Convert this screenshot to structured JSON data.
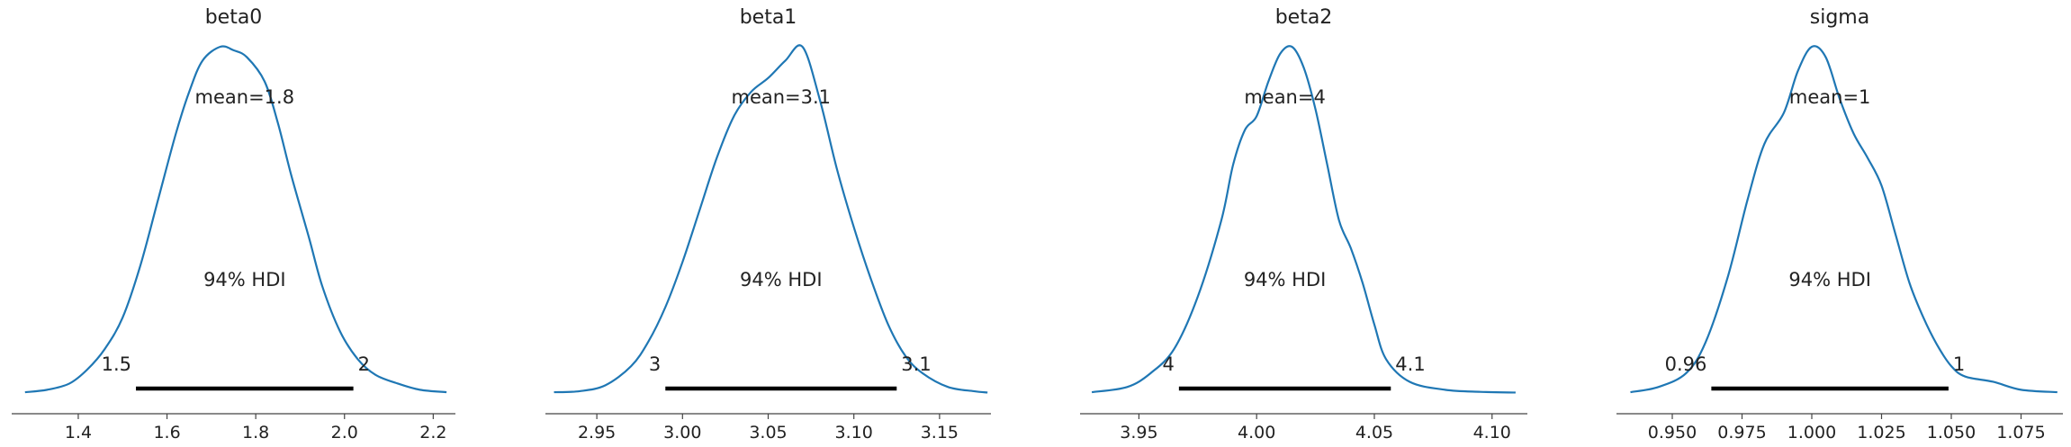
{
  "colors": {
    "curve": "#1f77b4",
    "hdi_bar": "#000000",
    "axis": "#444444",
    "text": "#222222"
  },
  "chart_data": [
    {
      "type": "line",
      "title": "beta0",
      "mean_label": "mean=1.8",
      "hdi_label": "94% HDI",
      "hdi": [
        1.53,
        2.02
      ],
      "hdi_low_label": "1.5",
      "hdi_high_label": "2",
      "xlim": [
        1.25,
        2.25
      ],
      "xticks": [
        1.4,
        1.6,
        1.8,
        2.0,
        2.2
      ],
      "xtick_labels": [
        "1.4",
        "1.6",
        "1.8",
        "2.0",
        "2.2"
      ],
      "density": {
        "x": [
          1.28,
          1.33,
          1.38,
          1.42,
          1.46,
          1.5,
          1.54,
          1.58,
          1.62,
          1.65,
          1.68,
          1.72,
          1.75,
          1.78,
          1.82,
          1.85,
          1.88,
          1.92,
          1.95,
          1.99,
          2.03,
          2.07,
          2.12,
          2.17,
          2.23
        ],
        "y": [
          0.005,
          0.012,
          0.03,
          0.07,
          0.13,
          0.22,
          0.37,
          0.56,
          0.75,
          0.87,
          0.96,
          1.0,
          0.99,
          0.97,
          0.9,
          0.78,
          0.63,
          0.45,
          0.31,
          0.18,
          0.1,
          0.055,
          0.03,
          0.012,
          0.005
        ]
      }
    },
    {
      "type": "line",
      "title": "beta1",
      "mean_label": "mean=3.1",
      "hdi_label": "94% HDI",
      "hdi": [
        2.99,
        3.125
      ],
      "hdi_low_label": "3",
      "hdi_high_label": "3.1",
      "xlim": [
        2.92,
        3.18
      ],
      "xticks": [
        2.95,
        3.0,
        3.05,
        3.1,
        3.15
      ],
      "xtick_labels": [
        "2.95",
        "3.00",
        "3.05",
        "3.10",
        "3.15"
      ],
      "density": {
        "x": [
          2.925,
          2.94,
          2.955,
          2.97,
          2.98,
          2.99,
          3.0,
          3.01,
          3.02,
          3.03,
          3.04,
          3.05,
          3.06,
          3.07,
          3.08,
          3.09,
          3.1,
          3.11,
          3.12,
          3.13,
          3.14,
          3.155,
          3.17,
          3.178
        ],
        "y": [
          0.005,
          0.008,
          0.025,
          0.08,
          0.15,
          0.25,
          0.38,
          0.53,
          0.68,
          0.8,
          0.87,
          0.91,
          0.96,
          1.0,
          0.85,
          0.65,
          0.48,
          0.33,
          0.2,
          0.11,
          0.06,
          0.02,
          0.008,
          0.004
        ]
      }
    },
    {
      "type": "line",
      "title": "beta2",
      "mean_label": "mean=4",
      "hdi_label": "94% HDI",
      "hdi": [
        3.967,
        4.057
      ],
      "hdi_low_label": "4",
      "hdi_high_label": "4.1",
      "xlim": [
        3.925,
        4.115
      ],
      "xticks": [
        3.95,
        4.0,
        4.05,
        4.1
      ],
      "xtick_labels": [
        "3.95",
        "4.00",
        "4.05",
        "4.10"
      ],
      "density": {
        "x": [
          3.93,
          3.945,
          3.955,
          3.965,
          3.975,
          3.985,
          3.99,
          3.995,
          4.0,
          4.005,
          4.01,
          4.015,
          4.02,
          4.025,
          4.03,
          4.035,
          4.04,
          4.045,
          4.05,
          4.055,
          4.065,
          4.08,
          4.095,
          4.11
        ],
        "y": [
          0.005,
          0.02,
          0.06,
          0.13,
          0.28,
          0.5,
          0.66,
          0.76,
          0.8,
          0.9,
          0.98,
          1.0,
          0.94,
          0.82,
          0.66,
          0.5,
          0.42,
          0.32,
          0.2,
          0.1,
          0.035,
          0.012,
          0.006,
          0.004
        ]
      }
    },
    {
      "type": "line",
      "title": "sigma",
      "mean_label": "mean=1",
      "hdi_label": "94% HDI",
      "hdi": [
        0.964,
        1.049
      ],
      "hdi_low_label": "0.96",
      "hdi_high_label": "1",
      "xlim": [
        0.93,
        1.09
      ],
      "xticks": [
        0.95,
        0.975,
        1.0,
        1.025,
        1.05,
        1.075
      ],
      "xtick_labels": [
        "0.950",
        "0.975",
        "1.000",
        "1.025",
        "1.050",
        "1.075"
      ],
      "density": {
        "x": [
          0.935,
          0.945,
          0.955,
          0.962,
          0.97,
          0.977,
          0.983,
          0.99,
          0.995,
          1.0,
          1.005,
          1.01,
          1.015,
          1.02,
          1.025,
          1.03,
          1.035,
          1.04,
          1.045,
          1.05,
          1.055,
          1.065,
          1.075,
          1.088
        ],
        "y": [
          0.005,
          0.02,
          0.06,
          0.15,
          0.34,
          0.56,
          0.72,
          0.81,
          0.93,
          1.0,
          0.97,
          0.85,
          0.75,
          0.68,
          0.6,
          0.46,
          0.32,
          0.22,
          0.14,
          0.08,
          0.05,
          0.035,
          0.012,
          0.005
        ]
      }
    }
  ]
}
